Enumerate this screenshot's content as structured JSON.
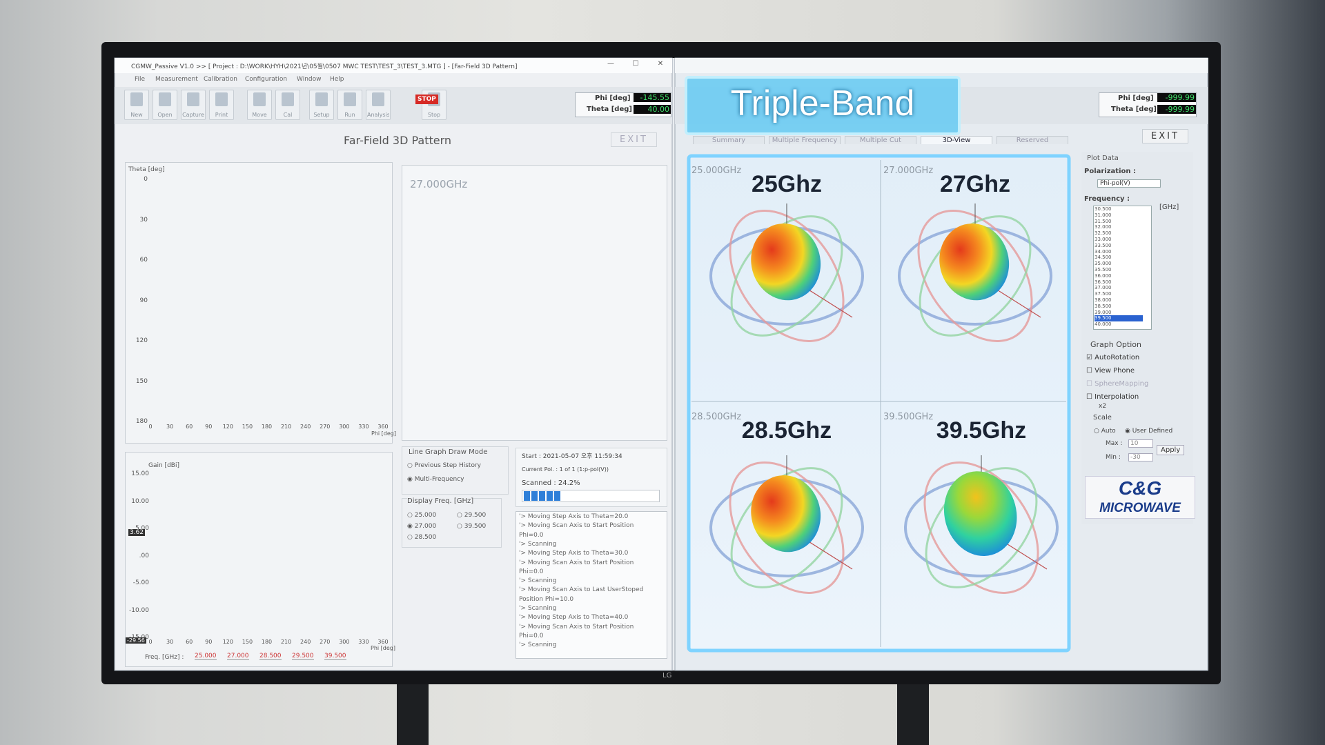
{
  "left_window": {
    "title": "CGMW_Passive V1.0 >> [ Project : D:\\WORK\\HYH\\2021년\\05월\\0507 MWC TEST\\TEST_3\\TEST_3.MTG ] - [Far-Field 3D Pattern]",
    "menu": [
      "File",
      "Measurement",
      "Calibration",
      "Configuration",
      "Window",
      "Help"
    ],
    "toolbar": [
      "New",
      "Open",
      "Capture",
      "Print",
      "Move",
      "Cal",
      "Setup",
      "Run",
      "Analysis",
      "Stop"
    ],
    "stop_icon": "STOP",
    "phi_label": "Phi [deg]",
    "phi_value": "-145.55",
    "theta_label": "Theta [deg]",
    "theta_value": "40.00",
    "heading": "Far-Field 3D Pattern",
    "exit": "EXIT",
    "theta_chart": {
      "axis_label": "Theta [deg]",
      "y_ticks": [
        "0",
        "30",
        "60",
        "90",
        "120",
        "150",
        "180"
      ],
      "x_ticks": [
        "0",
        "30",
        "60",
        "90",
        "120",
        "150",
        "180",
        "210",
        "240",
        "270",
        "300",
        "330",
        "360"
      ],
      "x_label": "Phi [deg]"
    },
    "sphere_freq": "27.000GHz",
    "gain_chart": {
      "axis_label": "Gain [dBi]",
      "y_ticks": [
        "15.00",
        "10.00",
        "5.00",
        ".00",
        "-5.00",
        "-10.00",
        "-15.00"
      ],
      "marker_top": "3.62",
      "marker_bottom": "-29.56",
      "x_ticks": [
        "0",
        "30",
        "60",
        "90",
        "120",
        "150",
        "180",
        "210",
        "240",
        "270",
        "300",
        "330",
        "360"
      ],
      "x_label": "Phi [deg]",
      "freq_label": "Freq. [GHz] :",
      "freqs": [
        "25.000",
        "27.000",
        "28.500",
        "29.500",
        "39.500"
      ]
    },
    "draw_mode": {
      "title": "Line Graph Draw Mode",
      "options": [
        "Previous Step History",
        "Multi-Frequency"
      ]
    },
    "display_freq": {
      "title": "Display Freq. [GHz]",
      "options": [
        "25.000",
        "29.500",
        "27.000",
        "39.500",
        "28.500"
      ]
    },
    "status": {
      "start": "Start : 2021-05-07 오후 11:59:34",
      "current": "Current Pol. : 1 of 1 (1:p-pol(V))",
      "scanned": "Scanned :   24.2%"
    },
    "log": [
      "'> Moving Step Axis to Theta=20.0",
      "'> Moving Scan Axis to Start Position",
      "Phi=0.0",
      "'> Scanning",
      "'> Moving Step Axis to Theta=30.0",
      "'> Moving Scan Axis to Start Position",
      "Phi=0.0",
      "'> Scanning",
      "'> Moving Scan Axis to Last UserStoped",
      "Position Phi=10.0",
      "'> Scanning",
      "'> Moving Step Axis to Theta=40.0",
      "'> Moving Scan Axis to Start Position",
      "Phi=0.0",
      "'> Scanning"
    ]
  },
  "right_window": {
    "banner": "Triple-Band",
    "tabs": [
      "Summary",
      "Multiple Frequency",
      "Multiple Cut",
      "3D-View",
      "Reserved"
    ],
    "phi_label": "Phi [deg]",
    "phi_value": "-999.99",
    "theta_label": "Theta [deg]",
    "theta_value": "-999.99",
    "exit": "EXIT",
    "panels": [
      {
        "freq": "25.000GHz",
        "label": "25Ghz"
      },
      {
        "freq": "27.000GHz",
        "label": "27Ghz"
      },
      {
        "freq": "28.500GHz",
        "label": "28.5Ghz"
      },
      {
        "freq": "39.500GHz",
        "label": "39.5Ghz"
      }
    ],
    "side": {
      "plot_data": "Plot Data",
      "polarization_label": "Polarization :",
      "polarization": "Phi-pol(V)",
      "frequency_label": "Frequency :",
      "frequency_unit": "[GHz]",
      "frequencies": [
        "30.500",
        "31.000",
        "31.500",
        "32.000",
        "32.500",
        "33.000",
        "33.500",
        "34.000",
        "34.500",
        "35.000",
        "35.500",
        "36.000",
        "36.500",
        "37.000",
        "37.500",
        "38.000",
        "38.500",
        "39.000",
        "39.500",
        "40.000"
      ],
      "selected_frequency": "39.500",
      "graph_option": "Graph Option",
      "options": [
        "AutoRotation",
        "View Phone",
        "SphereMapping",
        "Interpolation"
      ],
      "interp": "x2",
      "scale": "Scale",
      "auto": "Auto",
      "user_defined": "User Defined",
      "max_label": "Max :",
      "max": "10",
      "min_label": "Min :",
      "min": "-30",
      "apply": "Apply",
      "logo_top": "C&G",
      "logo_bottom": "MICROWAVE"
    }
  },
  "monitor_brand": "LG"
}
